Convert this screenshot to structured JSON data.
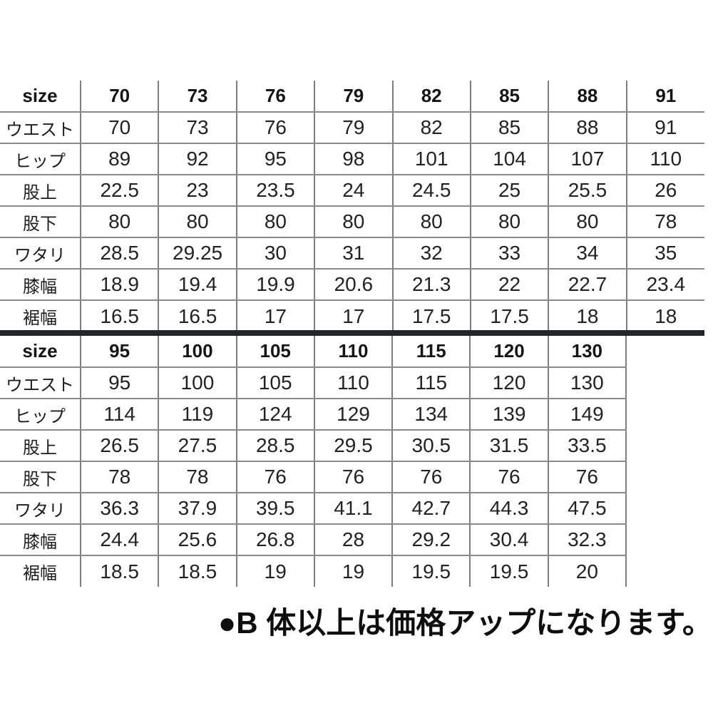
{
  "note": {
    "text": "●B 体以上は価格アップになります。"
  },
  "colors": {
    "background": "#ffffff",
    "grid_line": "#7e7e7e",
    "divider": "#212429",
    "text": "#1c1c1c"
  },
  "chart_data": [
    {
      "type": "table",
      "title": "size spec table (sizes 70-91)",
      "header": [
        "size",
        "70",
        "73",
        "76",
        "79",
        "82",
        "85",
        "88",
        "91"
      ],
      "row_labels": [
        "ウエスト",
        "ヒップ",
        "股上",
        "股下",
        "ワタリ",
        "膝幅",
        "裾幅"
      ],
      "rows": [
        [
          "70",
          "73",
          "76",
          "79",
          "82",
          "85",
          "88",
          "91"
        ],
        [
          "89",
          "92",
          "95",
          "98",
          "101",
          "104",
          "107",
          "110"
        ],
        [
          "22.5",
          "23",
          "23.5",
          "24",
          "24.5",
          "25",
          "25.5",
          "26"
        ],
        [
          "80",
          "80",
          "80",
          "80",
          "80",
          "80",
          "80",
          "78"
        ],
        [
          "28.5",
          "29.25",
          "30",
          "31",
          "32",
          "33",
          "34",
          "35"
        ],
        [
          "18.9",
          "19.4",
          "19.9",
          "20.6",
          "21.3",
          "22",
          "22.7",
          "23.4"
        ],
        [
          "16.5",
          "16.5",
          "17",
          "17",
          "17.5",
          "17.5",
          "18",
          "18"
        ]
      ]
    },
    {
      "type": "table",
      "title": "size spec table (sizes 95-130)",
      "header": [
        "size",
        "95",
        "100",
        "105",
        "110",
        "115",
        "120",
        "130"
      ],
      "row_labels": [
        "ウエスト",
        "ヒップ",
        "股上",
        "股下",
        "ワタリ",
        "膝幅",
        "裾幅"
      ],
      "rows": [
        [
          "95",
          "100",
          "105",
          "110",
          "115",
          "120",
          "130"
        ],
        [
          "114",
          "119",
          "124",
          "129",
          "134",
          "139",
          "149"
        ],
        [
          "26.5",
          "27.5",
          "28.5",
          "29.5",
          "30.5",
          "31.5",
          "33.5"
        ],
        [
          "78",
          "78",
          "76",
          "76",
          "76",
          "76",
          "76"
        ],
        [
          "36.3",
          "37.9",
          "39.5",
          "41.1",
          "42.7",
          "44.3",
          "47.5"
        ],
        [
          "24.4",
          "25.6",
          "26.8",
          "28",
          "29.2",
          "30.4",
          "32.3"
        ],
        [
          "18.5",
          "18.5",
          "19",
          "19",
          "19.5",
          "19.5",
          "20"
        ]
      ]
    }
  ]
}
